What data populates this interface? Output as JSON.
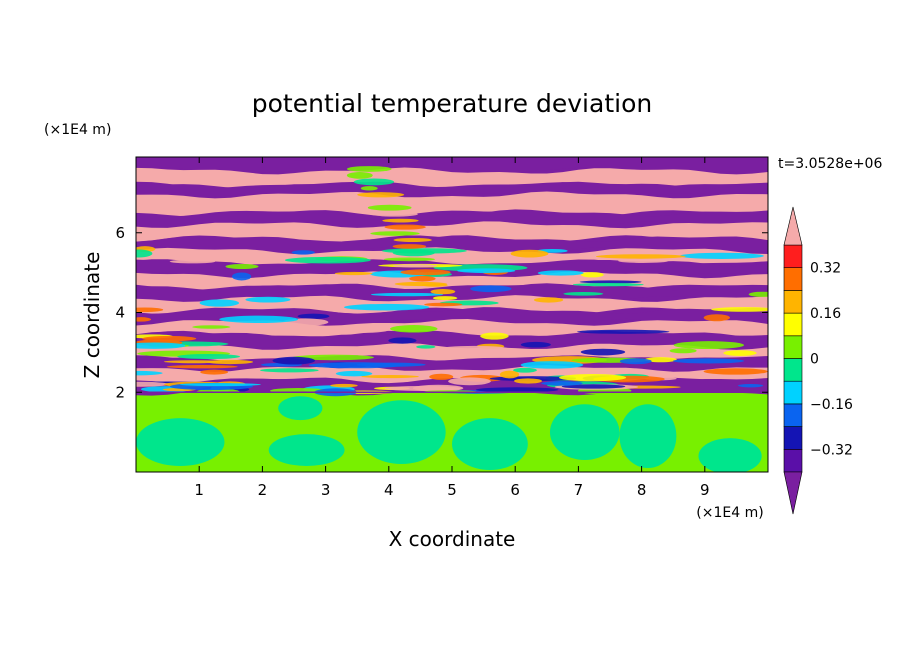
{
  "chart_data": {
    "type": "heatmap",
    "title": "potential temperature deviation",
    "xlabel": "X coordinate",
    "ylabel": "Z coordinate",
    "x_unit": "(×1E4 m)",
    "y_unit": "(×1E4 m)",
    "time_label": "t=3.0528e+06",
    "xlim": [
      0,
      10
    ],
    "ylim": [
      0,
      7.9
    ],
    "x_ticks": [
      1,
      2,
      3,
      4,
      5,
      6,
      7,
      8,
      9
    ],
    "y_ticks": [
      2,
      4,
      6
    ],
    "x_tick_labels": [
      "1",
      "2",
      "3",
      "4",
      "5",
      "6",
      "7",
      "8",
      "9"
    ],
    "y_tick_labels": [
      "2",
      "4",
      "6"
    ],
    "colorbar": {
      "levels": [
        -0.48,
        -0.4,
        -0.32,
        -0.24,
        -0.16,
        -0.08,
        0,
        0.08,
        0.16,
        0.24,
        0.32,
        0.4,
        0.48
      ],
      "tick_values": [
        0.32,
        0.16,
        0,
        -0.16,
        -0.32
      ],
      "tick_labels": [
        "0.32",
        "0.16",
        "0",
        "−0.16",
        "−0.32"
      ],
      "colors": [
        "#7a1fa0",
        "#5a0fa8",
        "#1414b4",
        "#0a64f0",
        "#00d2ff",
        "#00e68c",
        "#78f000",
        "#ffff00",
        "#ffb400",
        "#ff6e00",
        "#ff1e1e",
        "#f5aaaa"
      ],
      "extend": "both"
    },
    "mixed_layer_top": 2.0,
    "layers": [
      {
        "z0": 7.55,
        "z1": 7.9,
        "value": -0.5
      },
      {
        "z0": 7.2,
        "z1": 7.55,
        "value": 0.5
      },
      {
        "z0": 6.95,
        "z1": 7.2,
        "value": -0.5
      },
      {
        "z0": 6.5,
        "z1": 6.95,
        "value": 0.5
      },
      {
        "z0": 6.2,
        "z1": 6.5,
        "value": -0.5
      },
      {
        "z0": 5.85,
        "z1": 6.2,
        "value": 0.5
      },
      {
        "z0": 5.55,
        "z1": 5.85,
        "value": -0.5
      },
      {
        "z0": 5.25,
        "z1": 5.55,
        "value": 0.5
      },
      {
        "z0": 4.95,
        "z1": 5.25,
        "value": -0.5
      },
      {
        "z0": 4.65,
        "z1": 4.95,
        "value": 0.5
      },
      {
        "z0": 4.35,
        "z1": 4.65,
        "value": -0.5
      },
      {
        "z0": 4.05,
        "z1": 4.35,
        "value": 0.5
      },
      {
        "z0": 3.75,
        "z1": 4.05,
        "value": -0.5
      },
      {
        "z0": 3.45,
        "z1": 3.75,
        "value": 0.5
      },
      {
        "z0": 3.15,
        "z1": 3.45,
        "value": -0.5
      },
      {
        "z0": 2.85,
        "z1": 3.15,
        "value": 0.5
      },
      {
        "z0": 2.6,
        "z1": 2.85,
        "value": -0.5
      },
      {
        "z0": 2.3,
        "z1": 2.6,
        "value": 0.5
      },
      {
        "z0": 2.0,
        "z1": 2.3,
        "value": -0.5
      }
    ],
    "mixed_layer_patches": [
      {
        "x": 0.7,
        "z": 0.75,
        "rx": 0.7,
        "rz": 0.6,
        "value": -0.05
      },
      {
        "x": 2.7,
        "z": 0.55,
        "rx": 0.6,
        "rz": 0.4,
        "value": -0.05
      },
      {
        "x": 2.6,
        "z": 1.6,
        "rx": 0.35,
        "rz": 0.3,
        "value": -0.05
      },
      {
        "x": 4.2,
        "z": 1.0,
        "rx": 0.7,
        "rz": 0.8,
        "value": -0.05
      },
      {
        "x": 5.6,
        "z": 0.7,
        "rx": 0.6,
        "rz": 0.65,
        "value": -0.05
      },
      {
        "x": 7.1,
        "z": 1.0,
        "rx": 0.55,
        "rz": 0.7,
        "value": -0.05
      },
      {
        "x": 8.1,
        "z": 0.9,
        "rx": 0.45,
        "rz": 0.8,
        "value": -0.05
      },
      {
        "x": 9.4,
        "z": 0.4,
        "rx": 0.5,
        "rz": 0.45,
        "value": -0.05
      }
    ]
  }
}
